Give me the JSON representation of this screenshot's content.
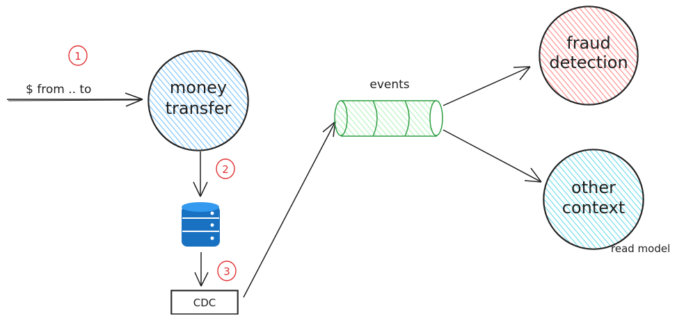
{
  "diagram": {
    "input_label": "$ from .. to",
    "money_transfer": {
      "line1": "money",
      "line2": "transfer"
    },
    "cdc_label": "CDC",
    "events_label": "events",
    "fraud_detection": {
      "line1": "fraud",
      "line2": "detection"
    },
    "other_context": {
      "line1": "other",
      "line2": "context"
    },
    "read_model_label": "read model",
    "steps": [
      "1",
      "2",
      "3"
    ],
    "colors": {
      "money_transfer_fill": "#74c0fc",
      "money_transfer_stroke": "#1e1e1e",
      "fraud_fill": "#ff8787",
      "fraud_stroke": "#1e1e1e",
      "other_fill": "#66d9e8",
      "other_stroke": "#1e1e1e",
      "queue_fill": "#b2f2bb",
      "queue_stroke": "#2f9e44",
      "database_fill": "#1971c2",
      "step_color": "#e03131",
      "line_color": "#1e1e1e"
    }
  }
}
